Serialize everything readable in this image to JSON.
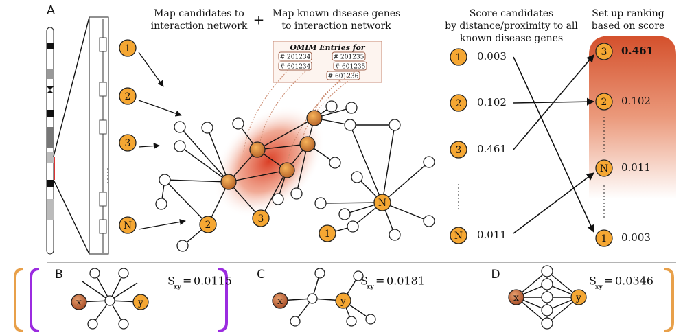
{
  "panel_a": {
    "label": "A",
    "step_map_candidates": [
      "Map candidates to",
      "interaction network"
    ],
    "plus": "+",
    "step_map_known": [
      "Map known disease genes",
      "to interaction network"
    ],
    "step_score": [
      "Score candidates",
      "by distance/proximity to all",
      "known disease genes"
    ],
    "step_rank": [
      "Set up ranking",
      "based on score"
    ],
    "candidates": [
      "1",
      "2",
      "3",
      "N"
    ],
    "omim": {
      "title": "OMIM Entries for",
      "entries": [
        "# 201234",
        "# 201235",
        "# 601234",
        "# 601235",
        "# 601236"
      ]
    },
    "scores": [
      "0.003",
      "0.102",
      "0.461",
      "0.011"
    ],
    "ranking": [
      {
        "node": "3",
        "score": "0.461"
      },
      {
        "node": "2",
        "score": "0.102"
      },
      {
        "node": "N",
        "score": "0.011"
      },
      {
        "node": "1",
        "score": "0.003"
      }
    ]
  },
  "panels": [
    {
      "label": "B",
      "symbol": "S",
      "subscript": "xy",
      "relation": "=",
      "score": "0.0115",
      "x": "x",
      "y": "y"
    },
    {
      "label": "C",
      "symbol": "S",
      "subscript": "xy",
      "relation": "=",
      "score": "0.0181",
      "x": "x",
      "y": "y"
    },
    {
      "label": "D",
      "symbol": "S",
      "subscript": "xy",
      "relation": "=",
      "score": "0.0346",
      "x": "x",
      "y": "y"
    }
  ]
}
